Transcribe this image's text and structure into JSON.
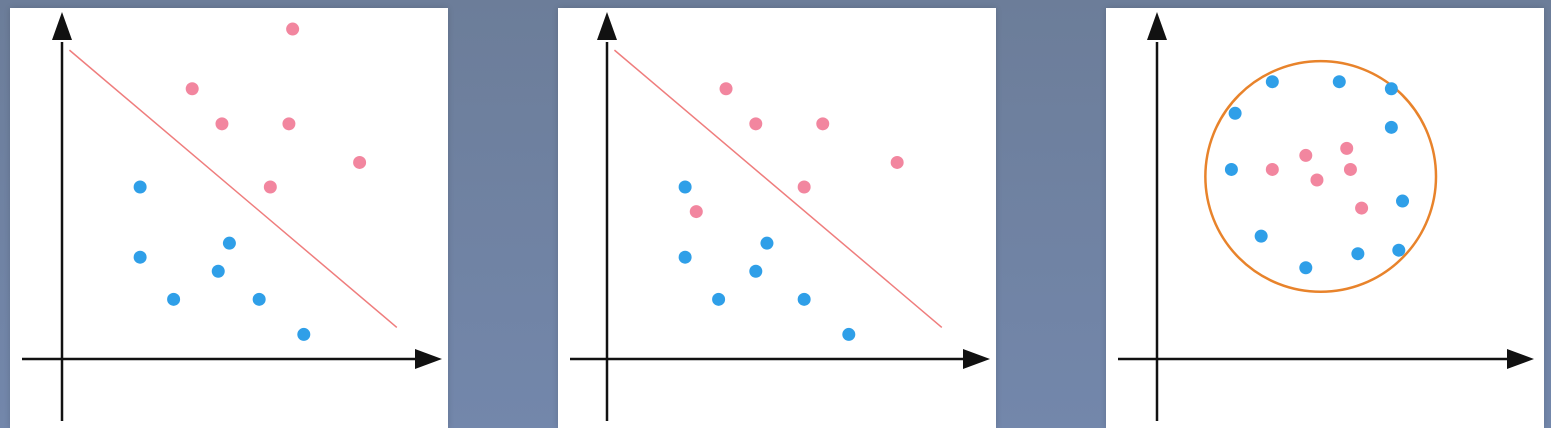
{
  "colors": {
    "background_top": "#6c7d99",
    "background_bottom": "#7387ab",
    "panel": "#ffffff",
    "axis": "#111111",
    "class_a": "#f2869f",
    "class_b": "#2f9fe8",
    "linear_boundary": "#ef7d7d",
    "circle_boundary": "#e8832b"
  },
  "chart_data": [
    {
      "type": "scatter",
      "title": "",
      "xlabel": "",
      "ylabel": "",
      "xlim": [
        0,
        10
      ],
      "ylim": [
        0,
        10
      ],
      "grid": false,
      "series": [
        {
          "color": "#f2869f",
          "points": [
            [
              6.2,
              9.4
            ],
            [
              3.5,
              7.7
            ],
            [
              4.3,
              6.7
            ],
            [
              6.1,
              6.7
            ],
            [
              8.0,
              5.6
            ],
            [
              5.6,
              4.9
            ]
          ]
        },
        {
          "color": "#2f9fe8",
          "points": [
            [
              2.1,
              4.9
            ],
            [
              4.5,
              3.3
            ],
            [
              2.1,
              2.9
            ],
            [
              4.2,
              2.5
            ],
            [
              3.0,
              1.7
            ],
            [
              5.3,
              1.7
            ],
            [
              6.5,
              0.7
            ]
          ]
        }
      ],
      "boundary": {
        "type": "line",
        "from": [
          0.2,
          8.8
        ],
        "to": [
          9.0,
          0.9
        ],
        "color": "#ef7d7d"
      }
    },
    {
      "type": "scatter",
      "title": "",
      "xlabel": "",
      "ylabel": "",
      "xlim": [
        0,
        10
      ],
      "ylim": [
        0,
        10
      ],
      "grid": false,
      "series": [
        {
          "color": "#f2869f",
          "points": [
            [
              3.2,
              7.7
            ],
            [
              4.0,
              6.7
            ],
            [
              5.8,
              6.7
            ],
            [
              7.8,
              5.6
            ],
            [
              5.3,
              4.9
            ],
            [
              2.4,
              4.2
            ]
          ]
        },
        {
          "color": "#2f9fe8",
          "points": [
            [
              2.1,
              4.9
            ],
            [
              4.3,
              3.3
            ],
            [
              2.1,
              2.9
            ],
            [
              4.0,
              2.5
            ],
            [
              3.0,
              1.7
            ],
            [
              5.3,
              1.7
            ],
            [
              6.5,
              0.7
            ]
          ]
        }
      ],
      "boundary": {
        "type": "line",
        "from": [
          0.2,
          8.8
        ],
        "to": [
          9.0,
          0.9
        ],
        "color": "#ef7d7d"
      }
    },
    {
      "type": "scatter",
      "title": "",
      "xlabel": "",
      "ylabel": "",
      "xlim": [
        0,
        10
      ],
      "ylim": [
        0,
        10
      ],
      "grid": false,
      "series": [
        {
          "color": "#f2869f",
          "points": [
            [
              4.0,
              5.8
            ],
            [
              5.1,
              6.0
            ],
            [
              3.1,
              5.4
            ],
            [
              4.3,
              5.1
            ],
            [
              5.2,
              5.4
            ],
            [
              5.5,
              4.3
            ]
          ]
        },
        {
          "color": "#2f9fe8",
          "points": [
            [
              3.1,
              7.9
            ],
            [
              4.9,
              7.9
            ],
            [
              6.3,
              7.7
            ],
            [
              2.1,
              7.0
            ],
            [
              6.3,
              6.6
            ],
            [
              2.0,
              5.4
            ],
            [
              6.6,
              4.5
            ],
            [
              2.8,
              3.5
            ],
            [
              4.0,
              2.6
            ],
            [
              5.4,
              3.0
            ],
            [
              6.5,
              3.1
            ]
          ]
        }
      ],
      "boundary": {
        "type": "circle",
        "center": [
          4.4,
          5.2
        ],
        "radius": 3.1,
        "color": "#e8832b"
      }
    }
  ]
}
